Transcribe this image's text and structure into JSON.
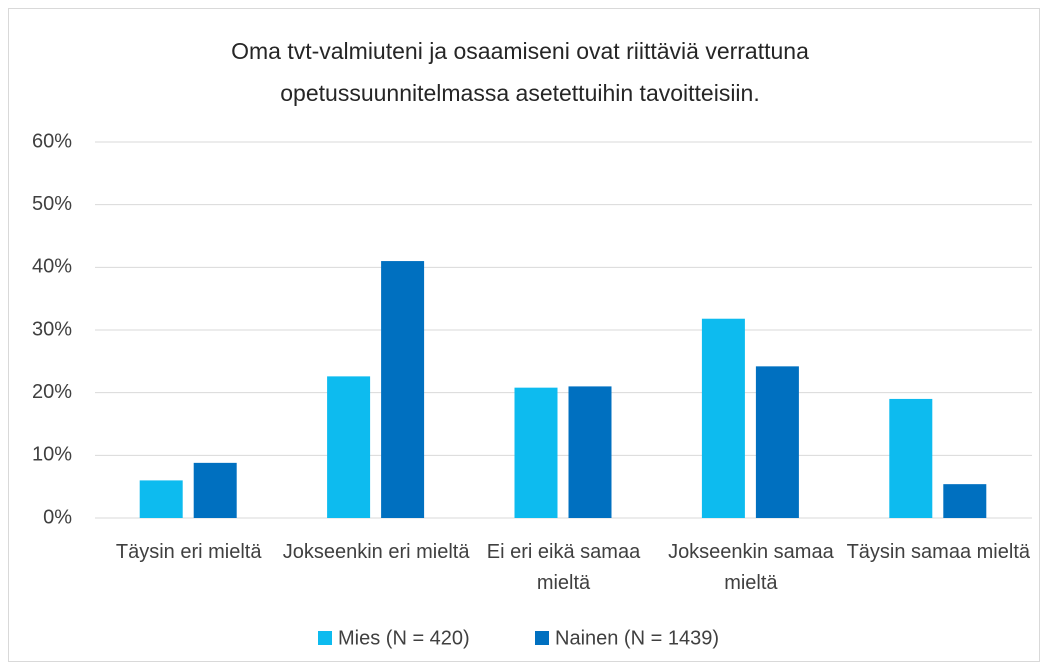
{
  "chart_data": {
    "type": "bar",
    "title": "Oma tvt-valmiuteni ja osaamiseni ovat riittäviä verrattuna opetussuunnitelmassa asetettuihin tavoitteisiin.",
    "categories": [
      "Täysin eri mieltä",
      "Jokseenkin eri mieltä",
      "Ei eri eikä samaa mieltä",
      "Jokseenkin samaa mieltä",
      "Täysin samaa mieltä"
    ],
    "series": [
      {
        "name": "Mies (N = 420)",
        "color": "#0dbbef",
        "values": [
          6,
          22.6,
          20.8,
          31.8,
          19
        ]
      },
      {
        "name": "Nainen (N = 1439)",
        "color": "#0070c0",
        "values": [
          8.8,
          41,
          21,
          24.2,
          5.4
        ]
      }
    ],
    "ylim": [
      0,
      60
    ],
    "yticks": [
      {
        "value": 0,
        "label": "0%"
      },
      {
        "value": 10,
        "label": "10%"
      },
      {
        "value": 20,
        "label": "20%"
      },
      {
        "value": 30,
        "label": "30%"
      },
      {
        "value": 40,
        "label": "40%"
      },
      {
        "value": 50,
        "label": "50%"
      },
      {
        "value": 60,
        "label": "60%"
      }
    ],
    "grid": true,
    "legend": "bottom"
  }
}
